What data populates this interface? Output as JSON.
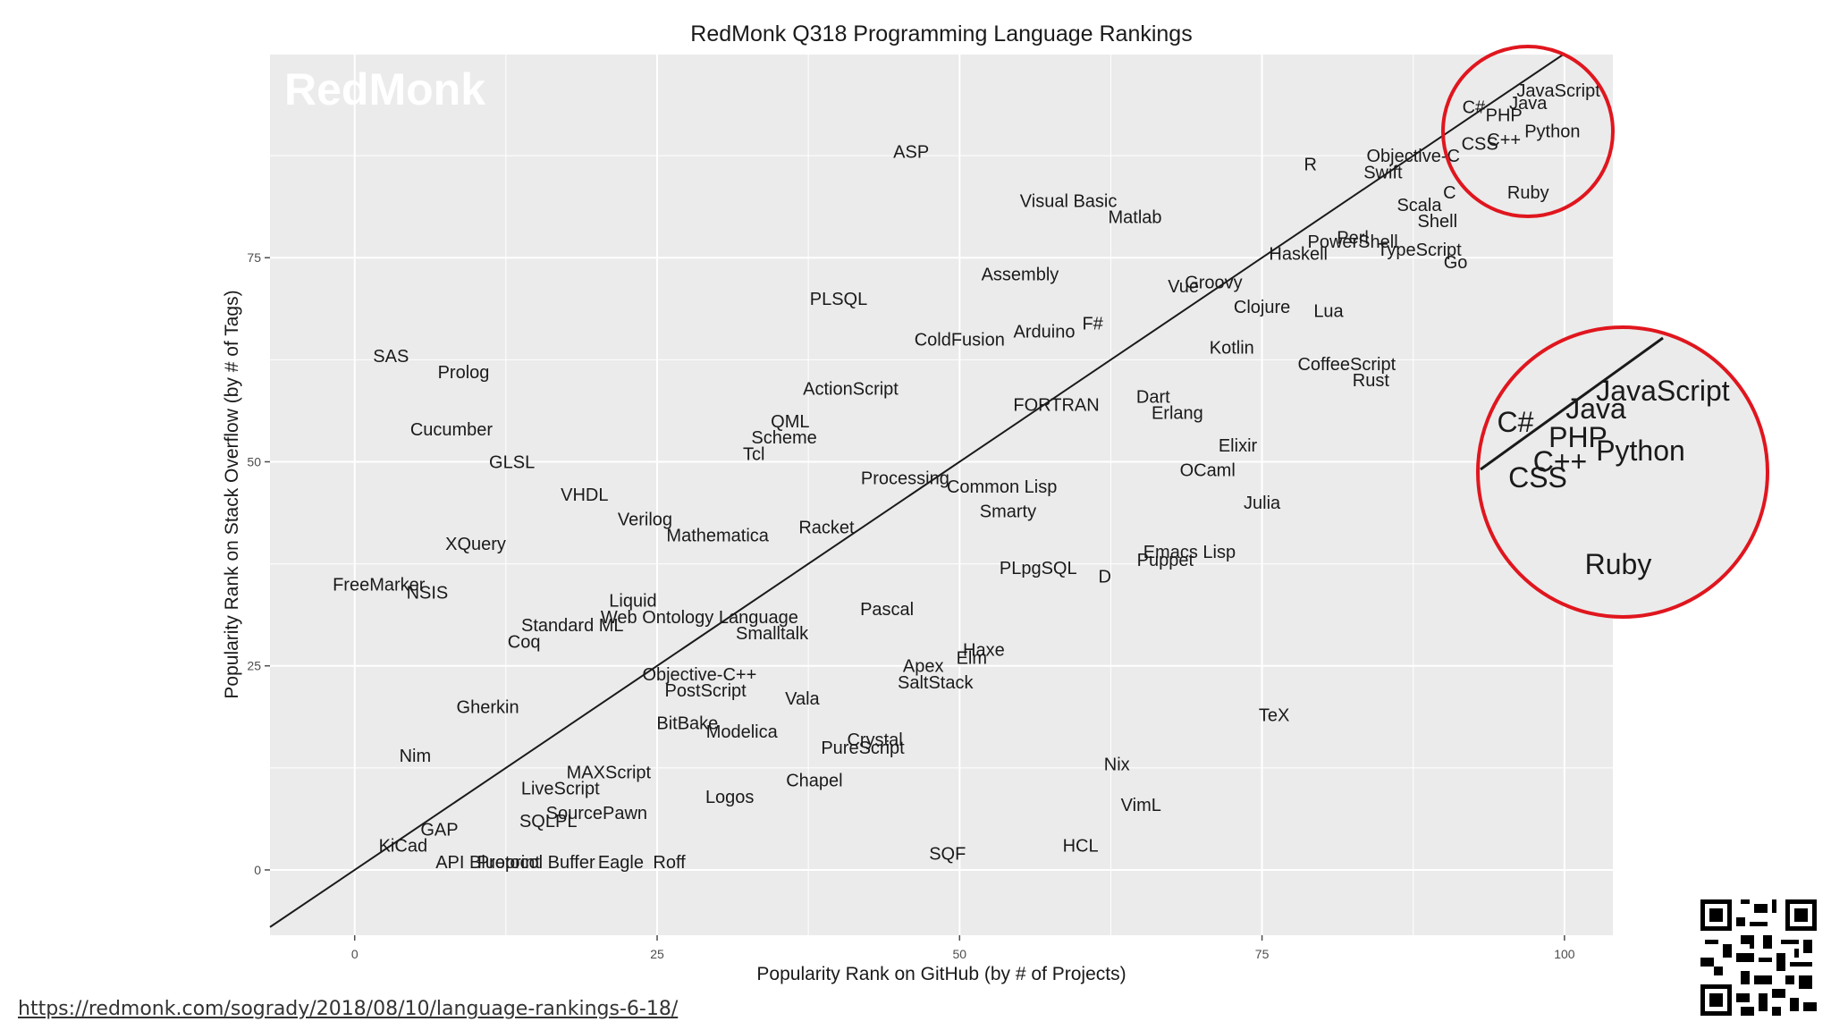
{
  "chart_data": {
    "type": "scatter",
    "title": "RedMonk Q318 Programming Language Rankings",
    "xlabel": "Popularity Rank on GitHub (by # of Projects)",
    "ylabel": "Popularity Rank on Stack Overflow (by # of Tags)",
    "xlim": [
      -7,
      104
    ],
    "ylim": [
      -8,
      100
    ],
    "x_ticks": [
      0,
      25,
      50,
      75,
      100
    ],
    "y_ticks": [
      0,
      25,
      50,
      75
    ],
    "grid": true,
    "reference_line": "y = x",
    "watermark": "RedMonk",
    "points": [
      {
        "label": "JavaScript",
        "x": 99.5,
        "y": 95.5
      },
      {
        "label": "Java",
        "x": 97,
        "y": 94
      },
      {
        "label": "C#",
        "x": 92.5,
        "y": 93.5
      },
      {
        "label": "PHP",
        "x": 95,
        "y": 92.5
      },
      {
        "label": "Python",
        "x": 99,
        "y": 90.5
      },
      {
        "label": "C++",
        "x": 95,
        "y": 89.5
      },
      {
        "label": "CSS",
        "x": 93,
        "y": 89
      },
      {
        "label": "Ruby",
        "x": 97,
        "y": 83
      },
      {
        "label": "R",
        "x": 79,
        "y": 86.5
      },
      {
        "label": "Objective-C",
        "x": 87.5,
        "y": 87.5
      },
      {
        "label": "Swift",
        "x": 85,
        "y": 85.5
      },
      {
        "label": "C",
        "x": 90.5,
        "y": 83
      },
      {
        "label": "Scala",
        "x": 88,
        "y": 81.5
      },
      {
        "label": "Shell",
        "x": 89.5,
        "y": 79.5
      },
      {
        "label": "Perl",
        "x": 82.5,
        "y": 77.5
      },
      {
        "label": "PowerShell",
        "x": 82.5,
        "y": 77
      },
      {
        "label": "TypeScript",
        "x": 88,
        "y": 76
      },
      {
        "label": "Haskell",
        "x": 78,
        "y": 75.5
      },
      {
        "label": "Go",
        "x": 91,
        "y": 74.5
      },
      {
        "label": "Groovy",
        "x": 71,
        "y": 72
      },
      {
        "label": "Vue",
        "x": 68.5,
        "y": 71.5
      },
      {
        "label": "Clojure",
        "x": 75,
        "y": 69
      },
      {
        "label": "Lua",
        "x": 80.5,
        "y": 68.5
      },
      {
        "label": "Visual Basic",
        "x": 59,
        "y": 82
      },
      {
        "label": "Matlab",
        "x": 64.5,
        "y": 80
      },
      {
        "label": "ASP",
        "x": 46,
        "y": 88
      },
      {
        "label": "Assembly",
        "x": 55,
        "y": 73
      },
      {
        "label": "PLSQL",
        "x": 40,
        "y": 70
      },
      {
        "label": "F#",
        "x": 61,
        "y": 67
      },
      {
        "label": "Arduino",
        "x": 57,
        "y": 66
      },
      {
        "label": "ColdFusion",
        "x": 50,
        "y": 65
      },
      {
        "label": "Kotlin",
        "x": 72.5,
        "y": 64
      },
      {
        "label": "CoffeeScript",
        "x": 82,
        "y": 62
      },
      {
        "label": "Rust",
        "x": 84,
        "y": 60
      },
      {
        "label": "SAS",
        "x": 3,
        "y": 63
      },
      {
        "label": "Prolog",
        "x": 9,
        "y": 61
      },
      {
        "label": "ActionScript",
        "x": 41,
        "y": 59
      },
      {
        "label": "Dart",
        "x": 66,
        "y": 58
      },
      {
        "label": "FORTRAN",
        "x": 58,
        "y": 57
      },
      {
        "label": "Erlang",
        "x": 68,
        "y": 56
      },
      {
        "label": "QML",
        "x": 36,
        "y": 55
      },
      {
        "label": "Cucumber",
        "x": 8,
        "y": 54
      },
      {
        "label": "Scheme",
        "x": 35.5,
        "y": 53
      },
      {
        "label": "Elixir",
        "x": 73,
        "y": 52
      },
      {
        "label": "Tcl",
        "x": 33,
        "y": 51
      },
      {
        "label": "GLSL",
        "x": 13,
        "y": 50
      },
      {
        "label": "OCaml",
        "x": 70.5,
        "y": 49
      },
      {
        "label": "Processing",
        "x": 45.5,
        "y": 48
      },
      {
        "label": "Common Lisp",
        "x": 53.5,
        "y": 47
      },
      {
        "label": "VHDL",
        "x": 19,
        "y": 46
      },
      {
        "label": "Julia",
        "x": 75,
        "y": 45
      },
      {
        "label": "Smarty",
        "x": 54,
        "y": 44
      },
      {
        "label": "Verilog",
        "x": 24,
        "y": 43
      },
      {
        "label": "Racket",
        "x": 39,
        "y": 42
      },
      {
        "label": "Mathematica",
        "x": 30,
        "y": 41
      },
      {
        "label": "XQuery",
        "x": 10,
        "y": 40
      },
      {
        "label": "Emacs Lisp",
        "x": 69,
        "y": 39
      },
      {
        "label": "Puppet",
        "x": 67,
        "y": 38
      },
      {
        "label": "PLpgSQL",
        "x": 56.5,
        "y": 37
      },
      {
        "label": "D",
        "x": 62,
        "y": 36
      },
      {
        "label": "FreeMarker",
        "x": 2,
        "y": 35
      },
      {
        "label": "NSIS",
        "x": 6,
        "y": 34
      },
      {
        "label": "Liquid",
        "x": 23,
        "y": 33
      },
      {
        "label": "Pascal",
        "x": 44,
        "y": 32
      },
      {
        "label": "Web Ontology Language",
        "x": 28.5,
        "y": 31
      },
      {
        "label": "Standard ML",
        "x": 18,
        "y": 30
      },
      {
        "label": "Smalltalk",
        "x": 34.5,
        "y": 29
      },
      {
        "label": "Coq",
        "x": 14,
        "y": 28
      },
      {
        "label": "Haxe",
        "x": 52,
        "y": 27
      },
      {
        "label": "Elm",
        "x": 51,
        "y": 26
      },
      {
        "label": "Apex",
        "x": 47,
        "y": 25
      },
      {
        "label": "Objective-C++",
        "x": 28.5,
        "y": 24
      },
      {
        "label": "SaltStack",
        "x": 48,
        "y": 23
      },
      {
        "label": "PostScript",
        "x": 29,
        "y": 22
      },
      {
        "label": "Vala",
        "x": 37,
        "y": 21
      },
      {
        "label": "Gherkin",
        "x": 11,
        "y": 20
      },
      {
        "label": "TeX",
        "x": 76,
        "y": 19
      },
      {
        "label": "BitBake",
        "x": 27.5,
        "y": 18
      },
      {
        "label": "Modelica",
        "x": 32,
        "y": 17
      },
      {
        "label": "Crystal",
        "x": 43,
        "y": 16
      },
      {
        "label": "PureScript",
        "x": 42,
        "y": 15
      },
      {
        "label": "Nim",
        "x": 5,
        "y": 14
      },
      {
        "label": "Nix",
        "x": 63,
        "y": 13
      },
      {
        "label": "MAXScript",
        "x": 21,
        "y": 12
      },
      {
        "label": "Chapel",
        "x": 38,
        "y": 11
      },
      {
        "label": "LiveScript",
        "x": 17,
        "y": 10
      },
      {
        "label": "Logos",
        "x": 31,
        "y": 9
      },
      {
        "label": "VimL",
        "x": 65,
        "y": 8
      },
      {
        "label": "SourcePawn",
        "x": 20,
        "y": 7
      },
      {
        "label": "SQLPL",
        "x": 16,
        "y": 6
      },
      {
        "label": "GAP",
        "x": 7,
        "y": 5
      },
      {
        "label": "KiCad",
        "x": 4,
        "y": 3
      },
      {
        "label": "HCL",
        "x": 60,
        "y": 3
      },
      {
        "label": "SQF",
        "x": 49,
        "y": 2
      },
      {
        "label": "API Blueprint",
        "x": 11,
        "y": 1
      },
      {
        "label": "Protocol Buffer",
        "x": 15,
        "y": 1
      },
      {
        "label": "Eagle",
        "x": 22,
        "y": 1
      },
      {
        "label": "Roff",
        "x": 26,
        "y": 1
      }
    ],
    "zoom_inset": {
      "labels": [
        {
          "label": "JavaScript"
        },
        {
          "label": "Java"
        },
        {
          "label": "C#"
        },
        {
          "label": "PHP"
        },
        {
          "label": "Python"
        },
        {
          "label": "C++"
        },
        {
          "label": "CSS"
        },
        {
          "label": "Ruby"
        }
      ]
    }
  },
  "source_link": "https://redmonk.com/sogrady/2018/08/10/language-rankings-6-18/"
}
